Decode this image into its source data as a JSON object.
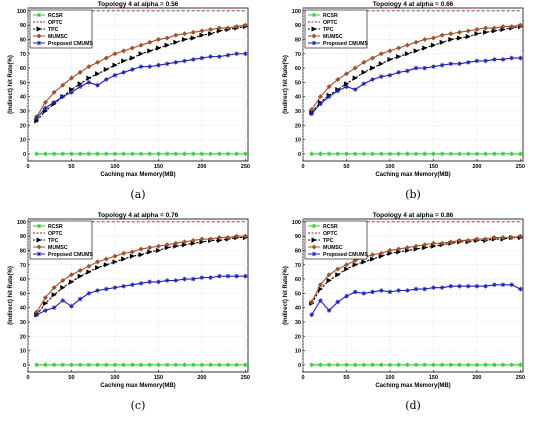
{
  "chart_data": [
    {
      "type": "line",
      "panel_label": "(a)",
      "title": "Topology 4 at alpha = 0.56",
      "xlabel": "Caching max Memory(MB)",
      "ylabel": "(Indirect) hit Rate(%)",
      "xlim": [
        0,
        253
      ],
      "ylim": [
        -5,
        102
      ],
      "xticks": [
        0,
        50,
        100,
        150,
        200,
        250
      ],
      "yticks": [
        0,
        10,
        20,
        30,
        40,
        50,
        60,
        70,
        80,
        90,
        100
      ],
      "grid": true,
      "legend_position": "top-left",
      "x": [
        10,
        20,
        30,
        40,
        50,
        60,
        70,
        80,
        90,
        100,
        110,
        120,
        130,
        140,
        150,
        160,
        170,
        180,
        190,
        200,
        210,
        220,
        230,
        240,
        250
      ],
      "series": [
        {
          "name": "RCSR",
          "color": "#33cc33",
          "style": "solid",
          "marker": "star",
          "values": [
            0,
            0,
            0,
            0,
            0,
            0,
            0,
            0,
            0,
            0,
            0,
            0,
            0,
            0,
            0,
            0,
            0,
            0,
            0,
            0,
            0,
            0,
            0,
            0,
            0
          ]
        },
        {
          "name": "OPTC",
          "color": "#8b2323",
          "style": "dashed",
          "marker": "none",
          "values": [
            100,
            100,
            100,
            100,
            100,
            100,
            100,
            100,
            100,
            100,
            100,
            100,
            100,
            100,
            100,
            100,
            100,
            100,
            100,
            100,
            100,
            100,
            100,
            100,
            100
          ]
        },
        {
          "name": "TPC",
          "color": "#000000",
          "style": "dashed",
          "marker": "triangle",
          "values": [
            23,
            30,
            35,
            40,
            45,
            49,
            53,
            56,
            59,
            62,
            65,
            67,
            70,
            72,
            74,
            76,
            78,
            80,
            81,
            83,
            84,
            86,
            87,
            88,
            89
          ]
        },
        {
          "name": "MUMSC",
          "color": "#a0522d",
          "style": "solid",
          "marker": "diamond",
          "values": [
            26,
            36,
            43,
            48,
            53,
            57,
            61,
            64,
            67,
            70,
            72,
            74,
            76,
            78,
            80,
            81,
            83,
            84,
            85,
            86,
            87,
            88,
            88,
            89,
            90
          ]
        },
        {
          "name": "Proposed CMUMS",
          "color": "#1f1fb4",
          "style": "solid",
          "marker": "star",
          "values": [
            25,
            32,
            36,
            40,
            43,
            47,
            50,
            48,
            52,
            55,
            57,
            59,
            61,
            61,
            62,
            63,
            64,
            65,
            66,
            67,
            68,
            68,
            69,
            70,
            70
          ]
        }
      ]
    },
    {
      "type": "line",
      "panel_label": "(b)",
      "title": "Topology 4 at alpha = 0.66",
      "xlabel": "Caching max Memory(MB)",
      "ylabel": "(Indirect) hit Rate(%)",
      "xlim": [
        0,
        253
      ],
      "ylim": [
        -5,
        102
      ],
      "xticks": [
        0,
        50,
        100,
        150,
        200,
        250
      ],
      "yticks": [
        0,
        10,
        20,
        30,
        40,
        50,
        60,
        70,
        80,
        90,
        100
      ],
      "grid": true,
      "legend_position": "top-left",
      "x": [
        10,
        20,
        30,
        40,
        50,
        60,
        70,
        80,
        90,
        100,
        110,
        120,
        130,
        140,
        150,
        160,
        170,
        180,
        190,
        200,
        210,
        220,
        230,
        240,
        250
      ],
      "series": [
        {
          "name": "RCSR",
          "color": "#33cc33",
          "style": "solid",
          "marker": "star",
          "values": [
            0,
            0,
            0,
            0,
            0,
            0,
            0,
            0,
            0,
            0,
            0,
            0,
            0,
            0,
            0,
            0,
            0,
            0,
            0,
            0,
            0,
            0,
            0,
            0,
            0
          ]
        },
        {
          "name": "OPTC",
          "color": "#8b2323",
          "style": "dashed",
          "marker": "none",
          "values": [
            100,
            100,
            100,
            100,
            100,
            100,
            100,
            100,
            100,
            100,
            100,
            100,
            100,
            100,
            100,
            100,
            100,
            100,
            100,
            100,
            100,
            100,
            100,
            100,
            100
          ]
        },
        {
          "name": "TPC",
          "color": "#000000",
          "style": "dashed",
          "marker": "triangle",
          "values": [
            29,
            36,
            41,
            45,
            49,
            53,
            57,
            60,
            63,
            66,
            68,
            70,
            72,
            74,
            76,
            78,
            80,
            81,
            82,
            84,
            85,
            86,
            87,
            88,
            89
          ]
        },
        {
          "name": "MUMSC",
          "color": "#a0522d",
          "style": "solid",
          "marker": "diamond",
          "values": [
            31,
            40,
            47,
            52,
            56,
            60,
            64,
            67,
            70,
            72,
            74,
            76,
            78,
            80,
            81,
            83,
            84,
            85,
            86,
            87,
            88,
            88,
            89,
            89,
            90
          ]
        },
        {
          "name": "Proposed CMUMS",
          "color": "#1f1fb4",
          "style": "solid",
          "marker": "star",
          "values": [
            28,
            35,
            40,
            44,
            47,
            45,
            49,
            52,
            54,
            55,
            57,
            58,
            60,
            60,
            61,
            62,
            63,
            63,
            64,
            65,
            65,
            66,
            66,
            67,
            67
          ]
        }
      ]
    },
    {
      "type": "line",
      "panel_label": "(c)",
      "title": "Topology 4 at alpha = 0.76",
      "xlabel": "Caching max Memory(MB)",
      "ylabel": "(Indirect) hit Rate(%)",
      "xlim": [
        0,
        253
      ],
      "ylim": [
        -5,
        102
      ],
      "xticks": [
        0,
        50,
        100,
        150,
        200,
        250
      ],
      "yticks": [
        0,
        10,
        20,
        30,
        40,
        50,
        60,
        70,
        80,
        90,
        100
      ],
      "grid": true,
      "legend_position": "top-left",
      "x": [
        10,
        20,
        30,
        40,
        50,
        60,
        70,
        80,
        90,
        100,
        110,
        120,
        130,
        140,
        150,
        160,
        170,
        180,
        190,
        200,
        210,
        220,
        230,
        240,
        250
      ],
      "series": [
        {
          "name": "RCSR",
          "color": "#33cc33",
          "style": "solid",
          "marker": "star",
          "values": [
            0,
            0,
            0,
            0,
            0,
            0,
            0,
            0,
            0,
            0,
            0,
            0,
            0,
            0,
            0,
            0,
            0,
            0,
            0,
            0,
            0,
            0,
            0,
            0,
            0
          ]
        },
        {
          "name": "OPTC",
          "color": "#8b2323",
          "style": "dashed",
          "marker": "none",
          "values": [
            100,
            100,
            100,
            100,
            100,
            100,
            100,
            100,
            100,
            100,
            100,
            100,
            100,
            100,
            100,
            100,
            100,
            100,
            100,
            100,
            100,
            100,
            100,
            100,
            100
          ]
        },
        {
          "name": "TPC",
          "color": "#000000",
          "style": "dashed",
          "marker": "triangle",
          "values": [
            35,
            43,
            49,
            54,
            58,
            62,
            65,
            68,
            70,
            72,
            74,
            76,
            77,
            79,
            80,
            82,
            83,
            84,
            85,
            86,
            87,
            87,
            88,
            89,
            89
          ]
        },
        {
          "name": "MUMSC",
          "color": "#a0522d",
          "style": "solid",
          "marker": "diamond",
          "values": [
            37,
            47,
            54,
            59,
            63,
            66,
            69,
            72,
            74,
            76,
            78,
            79,
            81,
            82,
            83,
            84,
            85,
            86,
            87,
            88,
            88,
            89,
            89,
            90,
            90
          ]
        },
        {
          "name": "Proposed CMUMS",
          "color": "#1f1fb4",
          "style": "solid",
          "marker": "star",
          "values": [
            35,
            38,
            40,
            45,
            41,
            46,
            50,
            52,
            53,
            54,
            55,
            56,
            57,
            58,
            58,
            59,
            59,
            60,
            60,
            61,
            61,
            62,
            62,
            62,
            62
          ]
        }
      ]
    },
    {
      "type": "line",
      "panel_label": "(d)",
      "title": "Topology 4 at alpha = 0.86",
      "xlabel": "Caching max Memory(MB)",
      "ylabel": "(Indirect) hit Rate(%)",
      "xlim": [
        0,
        253
      ],
      "ylim": [
        -5,
        102
      ],
      "xticks": [
        0,
        50,
        100,
        150,
        200,
        250
      ],
      "yticks": [
        0,
        10,
        20,
        30,
        40,
        50,
        60,
        70,
        80,
        90,
        100
      ],
      "grid": true,
      "legend_position": "top-left",
      "x": [
        10,
        20,
        30,
        40,
        50,
        60,
        70,
        80,
        90,
        100,
        110,
        120,
        130,
        140,
        150,
        160,
        170,
        180,
        190,
        200,
        210,
        220,
        230,
        240,
        250
      ],
      "series": [
        {
          "name": "RCSR",
          "color": "#33cc33",
          "style": "solid",
          "marker": "star",
          "values": [
            0,
            0,
            0,
            0,
            0,
            0,
            0,
            0,
            0,
            0,
            0,
            0,
            0,
            0,
            0,
            0,
            0,
            0,
            0,
            0,
            0,
            0,
            0,
            0,
            0
          ]
        },
        {
          "name": "OPTC",
          "color": "#8b2323",
          "style": "dashed",
          "marker": "none",
          "values": [
            100,
            100,
            100,
            100,
            100,
            100,
            100,
            100,
            100,
            100,
            100,
            100,
            100,
            100,
            100,
            100,
            100,
            100,
            100,
            100,
            100,
            100,
            100,
            100,
            100
          ]
        },
        {
          "name": "TPC",
          "color": "#000000",
          "style": "dashed",
          "marker": "triangle",
          "values": [
            43,
            53,
            59,
            63,
            67,
            70,
            72,
            74,
            76,
            78,
            79,
            80,
            81,
            82,
            83,
            84,
            85,
            86,
            86,
            87,
            87,
            88,
            88,
            89,
            89
          ]
        },
        {
          "name": "MUMSC",
          "color": "#a0522d",
          "style": "solid",
          "marker": "diamond",
          "values": [
            44,
            56,
            63,
            67,
            70,
            73,
            75,
            77,
            78,
            80,
            81,
            82,
            83,
            84,
            85,
            85,
            86,
            87,
            87,
            88,
            88,
            89,
            89,
            89,
            90
          ]
        },
        {
          "name": "Proposed CMUMS",
          "color": "#1f1fb4",
          "style": "solid",
          "marker": "star",
          "values": [
            35,
            45,
            38,
            44,
            48,
            51,
            50,
            51,
            52,
            51,
            52,
            52,
            53,
            53,
            54,
            54,
            55,
            55,
            55,
            55,
            55,
            56,
            56,
            56,
            53
          ]
        }
      ]
    }
  ]
}
